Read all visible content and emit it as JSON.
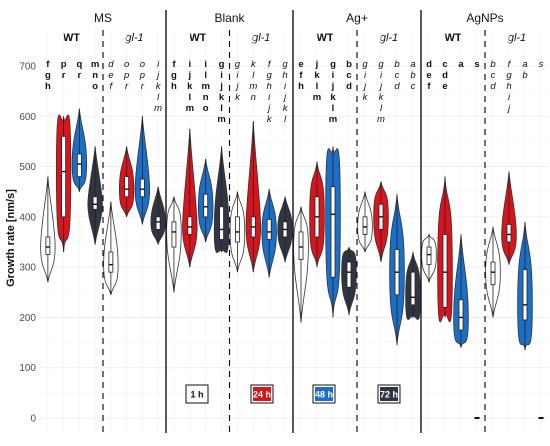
{
  "chart_data": {
    "type": "violin",
    "ylabel": "Growth rate [nm/s]",
    "y_ticks": [
      0,
      100,
      200,
      300,
      400,
      500,
      600,
      700
    ],
    "ylim": [
      -20,
      720
    ],
    "time_colors": {
      "1 h": "#ffffff",
      "24 h": "#d9141c",
      "48 h": "#1c6fc8",
      "72 h": "#2f3542"
    },
    "legend": [
      "1 h",
      "24 h",
      "48 h",
      "72 h"
    ],
    "panels": [
      {
        "name": "MS",
        "groups": [
          {
            "name": "WT",
            "italic": false,
            "violins": [
              {
                "time": "1 h",
                "median": 340,
                "q1": 325,
                "q3": 360,
                "min": 270,
                "max": 480,
                "letters": [
                  "f",
                  "g",
                  "h"
                ],
                "bold": true
              },
              {
                "time": "24 h",
                "median": 490,
                "q1": 400,
                "q3": 560,
                "min": 330,
                "max": 600,
                "letters": [
                  "p",
                  "r"
                ],
                "bold": true
              },
              {
                "time": "48 h",
                "median": 505,
                "q1": 480,
                "q3": 525,
                "min": 450,
                "max": 615,
                "letters": [
                  "q",
                  "r"
                ],
                "bold": true
              },
              {
                "time": "72 h",
                "median": 425,
                "q1": 415,
                "q3": 440,
                "min": 345,
                "max": 540,
                "letters": [
                  "m",
                  "n",
                  "o"
                ],
                "bold": true
              }
            ]
          },
          {
            "name": "gl-1",
            "italic": true,
            "violins": [
              {
                "time": "1 h",
                "median": 305,
                "q1": 290,
                "q3": 330,
                "min": 245,
                "max": 430,
                "letters": [
                  "d",
                  "e",
                  "f"
                ],
                "bold": false
              },
              {
                "time": "24 h",
                "median": 455,
                "q1": 440,
                "q3": 480,
                "min": 400,
                "max": 540,
                "letters": [
                  "o",
                  "p",
                  "r"
                ],
                "bold": false
              },
              {
                "time": "48 h",
                "median": 455,
                "q1": 440,
                "q3": 475,
                "min": 385,
                "max": 600,
                "letters": [
                  "o",
                  "p",
                  "r"
                ],
                "bold": false
              },
              {
                "time": "72 h",
                "median": 390,
                "q1": 375,
                "q3": 400,
                "min": 345,
                "max": 460,
                "letters": [
                  "i",
                  "j",
                  "k",
                  "l",
                  "m"
                ],
                "bold": false
              }
            ]
          }
        ]
      },
      {
        "name": "Blank",
        "groups": [
          {
            "name": "WT",
            "italic": false,
            "violins": [
              {
                "time": "1 h",
                "median": 370,
                "q1": 340,
                "q3": 390,
                "min": 250,
                "max": 440,
                "letters": [
                  "f",
                  "g",
                  "h"
                ],
                "bold": true
              },
              {
                "time": "24 h",
                "median": 380,
                "q1": 365,
                "q3": 400,
                "min": 300,
                "max": 575,
                "letters": [
                  "i",
                  "j",
                  "k",
                  "l",
                  "m"
                ],
                "bold": true
              },
              {
                "time": "48 h",
                "median": 420,
                "q1": 400,
                "q3": 445,
                "min": 350,
                "max": 515,
                "letters": [
                  "i",
                  "l",
                  "m",
                  "n",
                  "o"
                ],
                "bold": true
              },
              {
                "time": "72 h",
                "median": 375,
                "q1": 355,
                "q3": 420,
                "min": 330,
                "max": 540,
                "letters": [
                  "g",
                  "i",
                  "j",
                  "k",
                  "l",
                  "m"
                ],
                "bold": true
              }
            ]
          },
          {
            "name": "gl-1",
            "italic": true,
            "violins": [
              {
                "time": "1 h",
                "median": 370,
                "q1": 350,
                "q3": 400,
                "min": 290,
                "max": 450,
                "letters": [
                  "g",
                  "i",
                  "j",
                  "k"
                ],
                "bold": false
              },
              {
                "time": "24 h",
                "median": 380,
                "q1": 360,
                "q3": 400,
                "min": 290,
                "max": 590,
                "letters": [
                  "k",
                  "l",
                  "m",
                  "n"
                ],
                "bold": false
              },
              {
                "time": "48 h",
                "median": 370,
                "q1": 355,
                "q3": 395,
                "min": 280,
                "max": 455,
                "letters": [
                  "f",
                  "g",
                  "h",
                  "i",
                  "j",
                  "k"
                ],
                "bold": false
              },
              {
                "time": "72 h",
                "median": 375,
                "q1": 360,
                "q3": 390,
                "min": 310,
                "max": 440,
                "letters": [
                  "g",
                  "h",
                  "i",
                  "j",
                  "k",
                  "l"
                ],
                "bold": false
              }
            ]
          }
        ]
      },
      {
        "name": "Ag+",
        "groups": [
          {
            "name": "WT",
            "italic": false,
            "violins": [
              {
                "time": "1 h",
                "median": 340,
                "q1": 315,
                "q3": 370,
                "min": 190,
                "max": 420,
                "letters": [
                  "e",
                  "f",
                  "h"
                ],
                "bold": true
              },
              {
                "time": "24 h",
                "median": 400,
                "q1": 360,
                "q3": 440,
                "min": 300,
                "max": 510,
                "letters": [
                  "j",
                  "k",
                  "l",
                  "m"
                ],
                "bold": true
              },
              {
                "time": "48 h",
                "median": 405,
                "q1": 280,
                "q3": 460,
                "min": 200,
                "max": 540,
                "letters": [
                  "g",
                  "i",
                  "j",
                  "k",
                  "l",
                  "m"
                ],
                "bold": true
              },
              {
                "time": "72 h",
                "median": 290,
                "q1": 260,
                "q3": 310,
                "min": 205,
                "max": 340,
                "letters": [
                  "b",
                  "c",
                  "d"
                ],
                "bold": true
              }
            ]
          },
          {
            "name": "gl-1",
            "italic": true,
            "violins": [
              {
                "time": "1 h",
                "median": 380,
                "q1": 365,
                "q3": 400,
                "min": 330,
                "max": 450,
                "letters": [
                  "g",
                  "i",
                  "j",
                  "k"
                ],
                "bold": false
              },
              {
                "time": "24 h",
                "median": 400,
                "q1": 375,
                "q3": 425,
                "min": 310,
                "max": 470,
                "letters": [
                  "g",
                  "i",
                  "j",
                  "k",
                  "l",
                  "m"
                ],
                "bold": false
              },
              {
                "time": "48 h",
                "median": 290,
                "q1": 245,
                "q3": 335,
                "min": 145,
                "max": 445,
                "letters": [
                  "b",
                  "c",
                  "d"
                ],
                "bold": false
              },
              {
                "time": "72 h",
                "median": 240,
                "q1": 225,
                "q3": 290,
                "min": 200,
                "max": 330,
                "letters": [
                  "a",
                  "b",
                  "c"
                ],
                "bold": false
              }
            ]
          }
        ]
      },
      {
        "name": "AgNPs",
        "groups": [
          {
            "name": "WT",
            "italic": false,
            "violins": [
              {
                "time": "1 h",
                "median": 325,
                "q1": 305,
                "q3": 340,
                "min": 270,
                "max": 365,
                "letters": [
                  "d",
                  "e",
                  "f"
                ],
                "bold": true
              },
              {
                "time": "24 h",
                "median": 290,
                "q1": 220,
                "q3": 365,
                "min": 200,
                "max": 480,
                "letters": [
                  "c",
                  "d",
                  "e"
                ],
                "bold": true
              },
              {
                "time": "48 h",
                "median": 200,
                "q1": 175,
                "q3": 235,
                "min": 140,
                "max": 365,
                "letters": [
                  "a"
                ],
                "bold": true
              },
              {
                "time": "72 h",
                "median": 0,
                "q1": 0,
                "q3": 0,
                "min": 0,
                "max": 0,
                "letters": [
                  "s"
                ],
                "bold": true
              }
            ]
          },
          {
            "name": "gl-1",
            "italic": true,
            "violins": [
              {
                "time": "1 h",
                "median": 290,
                "q1": 265,
                "q3": 310,
                "min": 200,
                "max": 380,
                "letters": [
                  "b",
                  "c",
                  "d"
                ],
                "bold": false
              },
              {
                "time": "24 h",
                "median": 365,
                "q1": 350,
                "q3": 385,
                "min": 305,
                "max": 490,
                "letters": [
                  "f",
                  "g",
                  "h",
                  "i",
                  "j"
                ],
                "bold": false
              },
              {
                "time": "48 h",
                "median": 225,
                "q1": 195,
                "q3": 295,
                "min": 135,
                "max": 390,
                "letters": [
                  "a",
                  "b"
                ],
                "bold": false
              },
              {
                "time": "72 h",
                "median": 0,
                "q1": 0,
                "q3": 0,
                "min": 0,
                "max": 0,
                "letters": [
                  "s"
                ],
                "bold": false
              }
            ]
          }
        ]
      }
    ]
  }
}
